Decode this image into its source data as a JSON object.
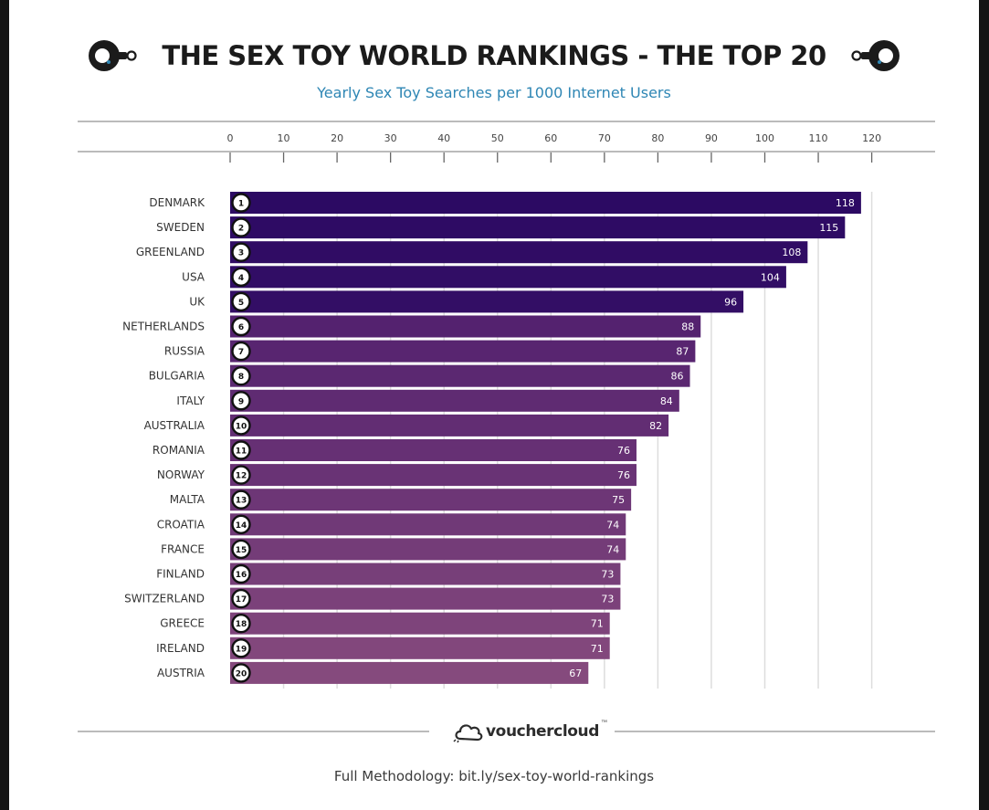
{
  "header": {
    "title": "THE SEX TOY WORLD RANKINGS - THE TOP 20",
    "subtitle": "Yearly Sex Toy Searches per 1000 Internet Users"
  },
  "footer": {
    "logo_text": "vouchercloud",
    "logo_tm": "™",
    "methodology": "Full Methodology: bit.ly/sex-toy-world-rankings"
  },
  "colors": {
    "accent": "#2e86b4",
    "bar_dark": "#2c0a63",
    "bar_mid": "#54226f",
    "bar_light": "#854a7d",
    "axis": "#aaaaaa"
  },
  "chart_data": {
    "type": "bar",
    "orientation": "horizontal",
    "title": "THE SEX TOY WORLD RANKINGS - THE TOP 20",
    "subtitle": "Yearly Sex Toy Searches per 1000 Internet Users",
    "xlabel": "",
    "ylabel": "",
    "xlim": [
      0,
      120
    ],
    "xticks": [
      0,
      10,
      20,
      30,
      40,
      50,
      60,
      70,
      80,
      90,
      100,
      110,
      120
    ],
    "grid": true,
    "categories": [
      "DENMARK",
      "SWEDEN",
      "GREENLAND",
      "USA",
      "UK",
      "NETHERLANDS",
      "RUSSIA",
      "BULGARIA",
      "ITALY",
      "AUSTRALIA",
      "ROMANIA",
      "NORWAY",
      "MALTA",
      "CROATIA",
      "FRANCE",
      "FINLAND",
      "SWITZERLAND",
      "GREECE",
      "IRELAND",
      "AUSTRIA"
    ],
    "ranks": [
      "1",
      "2",
      "3",
      "4",
      "5",
      "6",
      "7",
      "8",
      "9",
      "10",
      "11",
      "12",
      "13",
      "14",
      "15",
      "16",
      "17",
      "18",
      "19",
      "20"
    ],
    "values": [
      118,
      115,
      108,
      104,
      96,
      88,
      87,
      86,
      84,
      82,
      76,
      76,
      75,
      74,
      74,
      73,
      73,
      71,
      71,
      67
    ]
  }
}
